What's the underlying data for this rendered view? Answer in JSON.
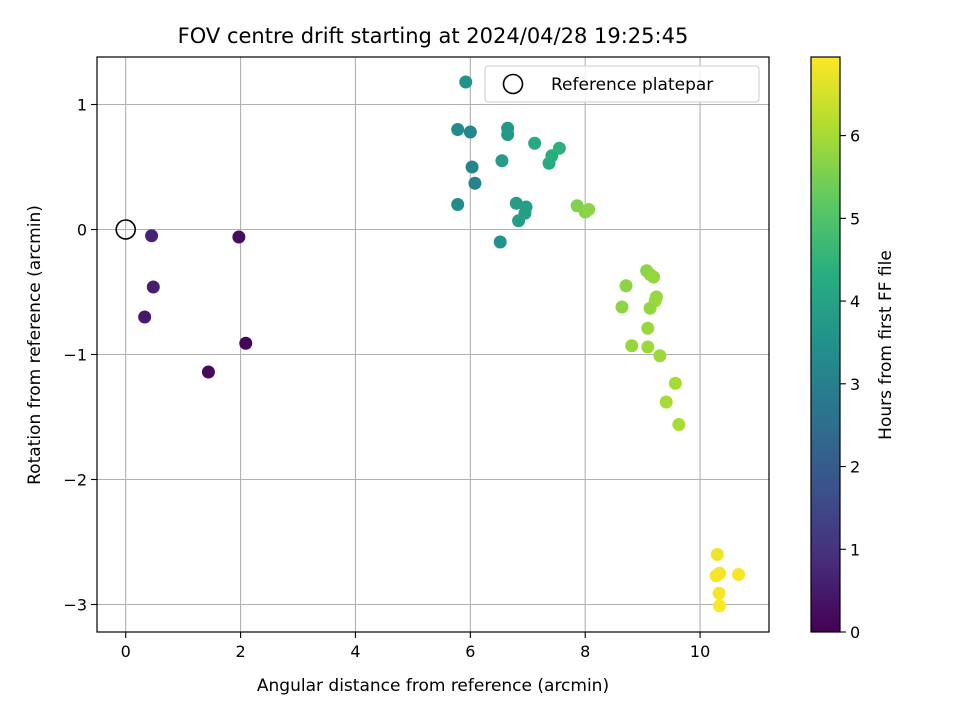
{
  "chart_data": {
    "type": "scatter",
    "title": "FOV centre drift starting at 2024/04/28 19:25:45",
    "xlabel": "Angular distance from reference (arcmin)",
    "ylabel": "Rotation from reference (arcmin)",
    "xlim": [
      -0.5,
      11.2
    ],
    "ylim": [
      -3.22,
      1.38
    ],
    "xticks": [
      0,
      2,
      4,
      6,
      8,
      10
    ],
    "xtick_labels": [
      "0",
      "2",
      "4",
      "6",
      "8",
      "10"
    ],
    "yticks": [
      -3,
      -2,
      -1,
      0,
      1
    ],
    "ytick_labels": [
      "−3",
      "−2",
      "−1",
      "0",
      "1"
    ],
    "grid": true,
    "legend": {
      "position": "top-right",
      "label": "Reference platepar"
    },
    "reference_point": {
      "x": 0,
      "y": 0
    },
    "colorbar": {
      "label": "Hours from first FF file",
      "colormap": "viridis",
      "range": [
        0,
        6.95
      ],
      "ticks": [
        0,
        1,
        2,
        3,
        4,
        5,
        6
      ],
      "tick_labels": [
        "0",
        "1",
        "2",
        "3",
        "4",
        "5",
        "6"
      ]
    },
    "points": [
      {
        "x": 0.45,
        "y": -0.05,
        "hours": 0.7
      },
      {
        "x": 0.48,
        "y": -0.46,
        "hours": 0.6
      },
      {
        "x": 0.33,
        "y": -0.7,
        "hours": 0.5
      },
      {
        "x": 1.97,
        "y": -0.06,
        "hours": 0.25
      },
      {
        "x": 2.09,
        "y": -0.91,
        "hours": 0.1
      },
      {
        "x": 1.44,
        "y": -1.14,
        "hours": 0.2
      },
      {
        "x": 5.92,
        "y": 1.18,
        "hours": 3.5
      },
      {
        "x": 5.78,
        "y": 0.8,
        "hours": 3.3
      },
      {
        "x": 6.0,
        "y": 0.78,
        "hours": 3.2
      },
      {
        "x": 6.03,
        "y": 0.5,
        "hours": 3.1
      },
      {
        "x": 6.08,
        "y": 0.37,
        "hours": 3.05
      },
      {
        "x": 5.78,
        "y": 0.2,
        "hours": 3.4
      },
      {
        "x": 6.52,
        "y": -0.1,
        "hours": 3.5
      },
      {
        "x": 6.55,
        "y": 0.55,
        "hours": 3.8
      },
      {
        "x": 6.65,
        "y": 0.81,
        "hours": 3.7
      },
      {
        "x": 6.65,
        "y": 0.76,
        "hours": 3.75
      },
      {
        "x": 6.8,
        "y": 0.21,
        "hours": 3.8
      },
      {
        "x": 6.97,
        "y": 0.18,
        "hours": 3.85
      },
      {
        "x": 6.95,
        "y": 0.13,
        "hours": 3.9
      },
      {
        "x": 6.84,
        "y": 0.07,
        "hours": 3.85
      },
      {
        "x": 7.12,
        "y": 0.69,
        "hours": 4.2
      },
      {
        "x": 7.37,
        "y": 0.53,
        "hours": 4.25
      },
      {
        "x": 7.42,
        "y": 0.59,
        "hours": 4.3
      },
      {
        "x": 7.55,
        "y": 0.65,
        "hours": 4.4
      },
      {
        "x": 7.86,
        "y": 0.19,
        "hours": 5.6
      },
      {
        "x": 8.0,
        "y": 0.14,
        "hours": 5.65
      },
      {
        "x": 8.06,
        "y": 0.16,
        "hours": 5.7
      },
      {
        "x": 8.71,
        "y": -0.45,
        "hours": 5.7
      },
      {
        "x": 8.64,
        "y": -0.62,
        "hours": 5.75
      },
      {
        "x": 8.81,
        "y": -0.93,
        "hours": 5.8
      },
      {
        "x": 9.07,
        "y": -0.33,
        "hours": 5.7
      },
      {
        "x": 9.13,
        "y": -0.36,
        "hours": 5.75
      },
      {
        "x": 9.19,
        "y": -0.38,
        "hours": 5.8
      },
      {
        "x": 9.24,
        "y": -0.54,
        "hours": 5.8
      },
      {
        "x": 9.22,
        "y": -0.57,
        "hours": 5.85
      },
      {
        "x": 9.13,
        "y": -0.63,
        "hours": 5.8
      },
      {
        "x": 9.09,
        "y": -0.79,
        "hours": 5.85
      },
      {
        "x": 9.09,
        "y": -0.94,
        "hours": 5.9
      },
      {
        "x": 9.3,
        "y": -1.01,
        "hours": 5.9
      },
      {
        "x": 9.57,
        "y": -1.23,
        "hours": 6.0
      },
      {
        "x": 9.41,
        "y": -1.38,
        "hours": 6.0
      },
      {
        "x": 9.63,
        "y": -1.56,
        "hours": 6.05
      },
      {
        "x": 10.3,
        "y": -2.6,
        "hours": 6.8
      },
      {
        "x": 10.34,
        "y": -2.75,
        "hours": 6.85
      },
      {
        "x": 10.28,
        "y": -2.77,
        "hours": 6.9
      },
      {
        "x": 10.33,
        "y": -2.91,
        "hours": 6.9
      },
      {
        "x": 10.34,
        "y": -3.01,
        "hours": 6.95
      },
      {
        "x": 10.67,
        "y": -2.76,
        "hours": 6.9
      }
    ]
  }
}
